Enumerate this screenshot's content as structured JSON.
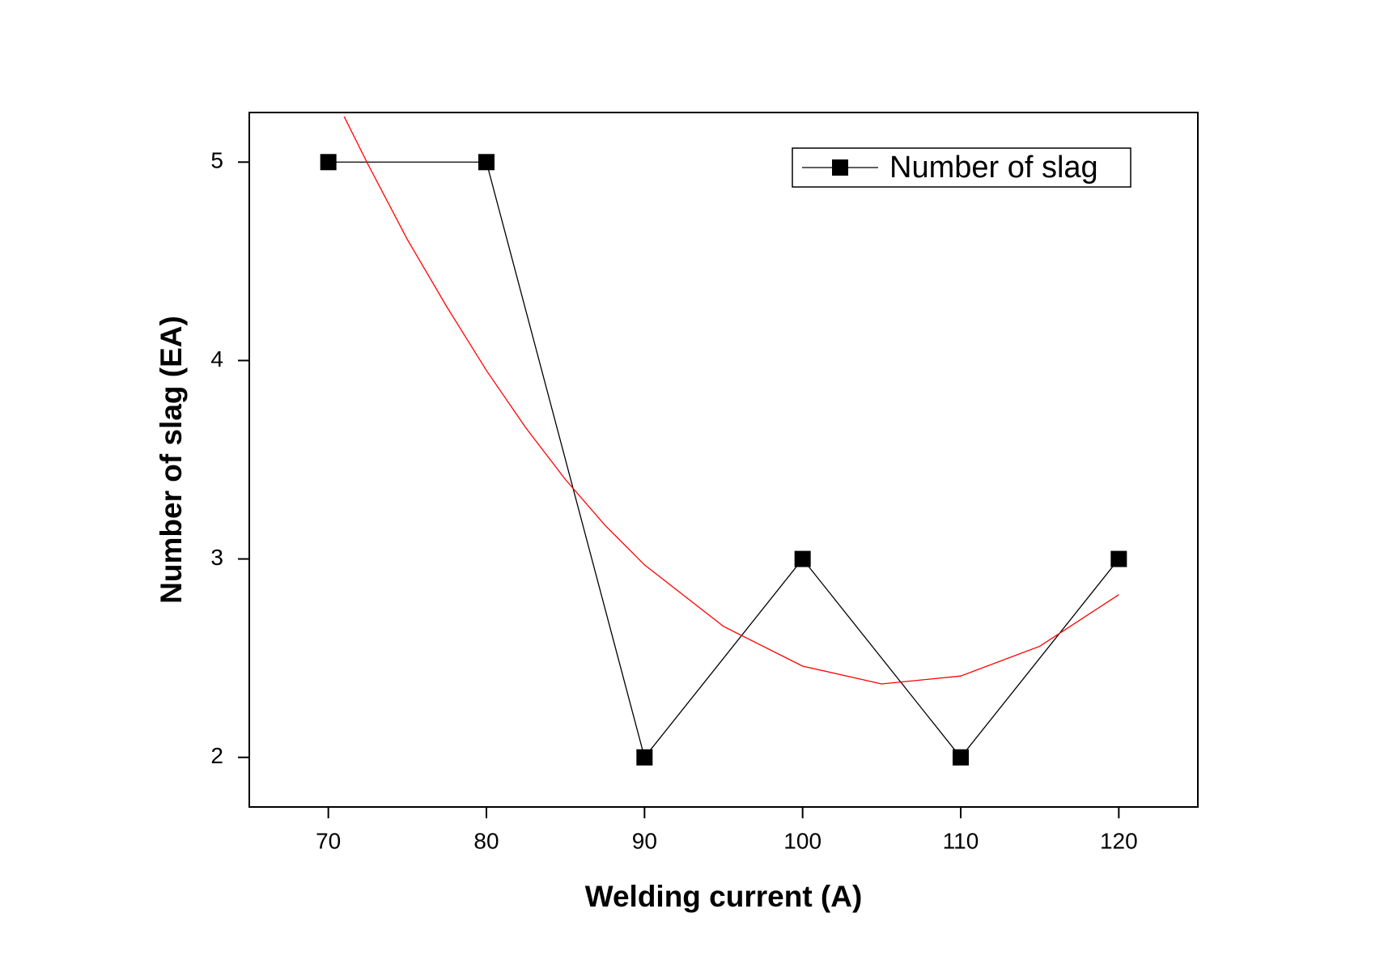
{
  "chart_data": {
    "type": "line",
    "xlabel": "Welding current (A)",
    "ylabel": "Number of slag (EA)",
    "xlim": [
      65,
      125
    ],
    "ylim": [
      1.75,
      5.25
    ],
    "xticks": [
      70,
      80,
      90,
      100,
      110,
      120
    ],
    "yticks": [
      2,
      3,
      4,
      5
    ],
    "legend": "upper right",
    "series": [
      {
        "name": "Number of slag",
        "color": "#000000",
        "marker": "square",
        "x": [
          70,
          80,
          90,
          100,
          110,
          120
        ],
        "values": [
          5,
          5,
          2,
          3,
          2,
          3
        ]
      },
      {
        "color": "#ff0000",
        "marker": "none",
        "x": [
          71,
          72.5,
          75,
          77.5,
          80,
          82.5,
          85,
          87.5,
          90,
          95,
          100,
          105,
          110,
          115,
          120
        ],
        "values": [
          5.23,
          4.99,
          4.61,
          4.27,
          3.95,
          3.66,
          3.4,
          3.17,
          2.97,
          2.66,
          2.46,
          2.37,
          2.41,
          2.56,
          2.82
        ]
      }
    ]
  }
}
